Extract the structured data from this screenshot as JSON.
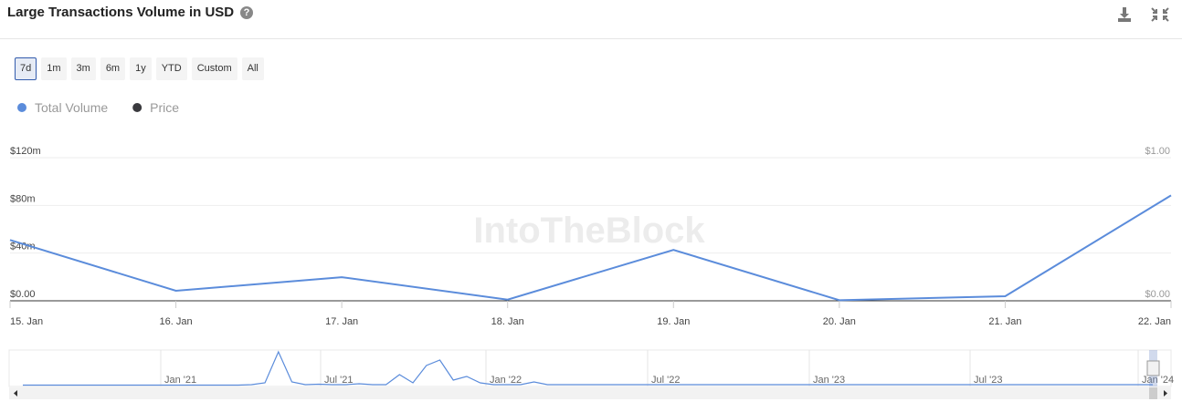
{
  "header": {
    "title": "Large Transactions Volume in USD"
  },
  "range_buttons": [
    "7d",
    "1m",
    "3m",
    "6m",
    "1y",
    "YTD",
    "Custom",
    "All"
  ],
  "selected_range": 0,
  "chart_data": {
    "type": "line",
    "watermark": "IntoTheBlock",
    "categories": [
      "15. Jan",
      "16. Jan",
      "17. Jan",
      "18. Jan",
      "19. Jan",
      "20. Jan",
      "21. Jan",
      "22. Jan"
    ],
    "series": [
      {
        "name": "Total Volume",
        "color": "#5b8cdb",
        "values": [
          51,
          8.4,
          19.8,
          1,
          42.7,
          0.5,
          3.8,
          88.4
        ]
      },
      {
        "name": "Price",
        "color": "#3a3a3e",
        "axis": "y2",
        "values": [
          null,
          null,
          null,
          null,
          null,
          null,
          null,
          null
        ]
      }
    ],
    "ylim": [
      0,
      120
    ],
    "yticks": [
      {
        "value": 0,
        "label": "$0.00"
      },
      {
        "value": 40,
        "label": "$40m"
      },
      {
        "value": 80,
        "label": "$80m"
      },
      {
        "value": 120,
        "label": "$120m"
      }
    ],
    "y2lim": [
      0,
      1
    ],
    "y2ticks": [
      {
        "value": 0,
        "label": "$0.00"
      },
      {
        "value": 1,
        "label": "$1.00"
      }
    ],
    "grid": true,
    "navigator": {
      "labels": [
        "Jan '21",
        "Jul '21",
        "Jan '22",
        "Jul '22",
        "Jan '23",
        "Jul '23",
        "Jan '24"
      ],
      "values": [
        0.5,
        0.5,
        0.5,
        0.5,
        0.5,
        0.5,
        0.5,
        0.5,
        0.5,
        0.5,
        0.5,
        0.5,
        0.5,
        0.5,
        0.5,
        0.5,
        0.5,
        1,
        3,
        37,
        4,
        1,
        1.5,
        1,
        1,
        2,
        1,
        1,
        12,
        3,
        22,
        28,
        6,
        10,
        3,
        1,
        1,
        1,
        4,
        1,
        1,
        1,
        1,
        1,
        1,
        1,
        1,
        1,
        1,
        1,
        1,
        1,
        1,
        1,
        1,
        1,
        1,
        1,
        1,
        1,
        1,
        1,
        1,
        1,
        1,
        1,
        1,
        1,
        1,
        1,
        1,
        1,
        1,
        1,
        1,
        1,
        1,
        1,
        1,
        1,
        1,
        1,
        1,
        1,
        1
      ]
    }
  }
}
